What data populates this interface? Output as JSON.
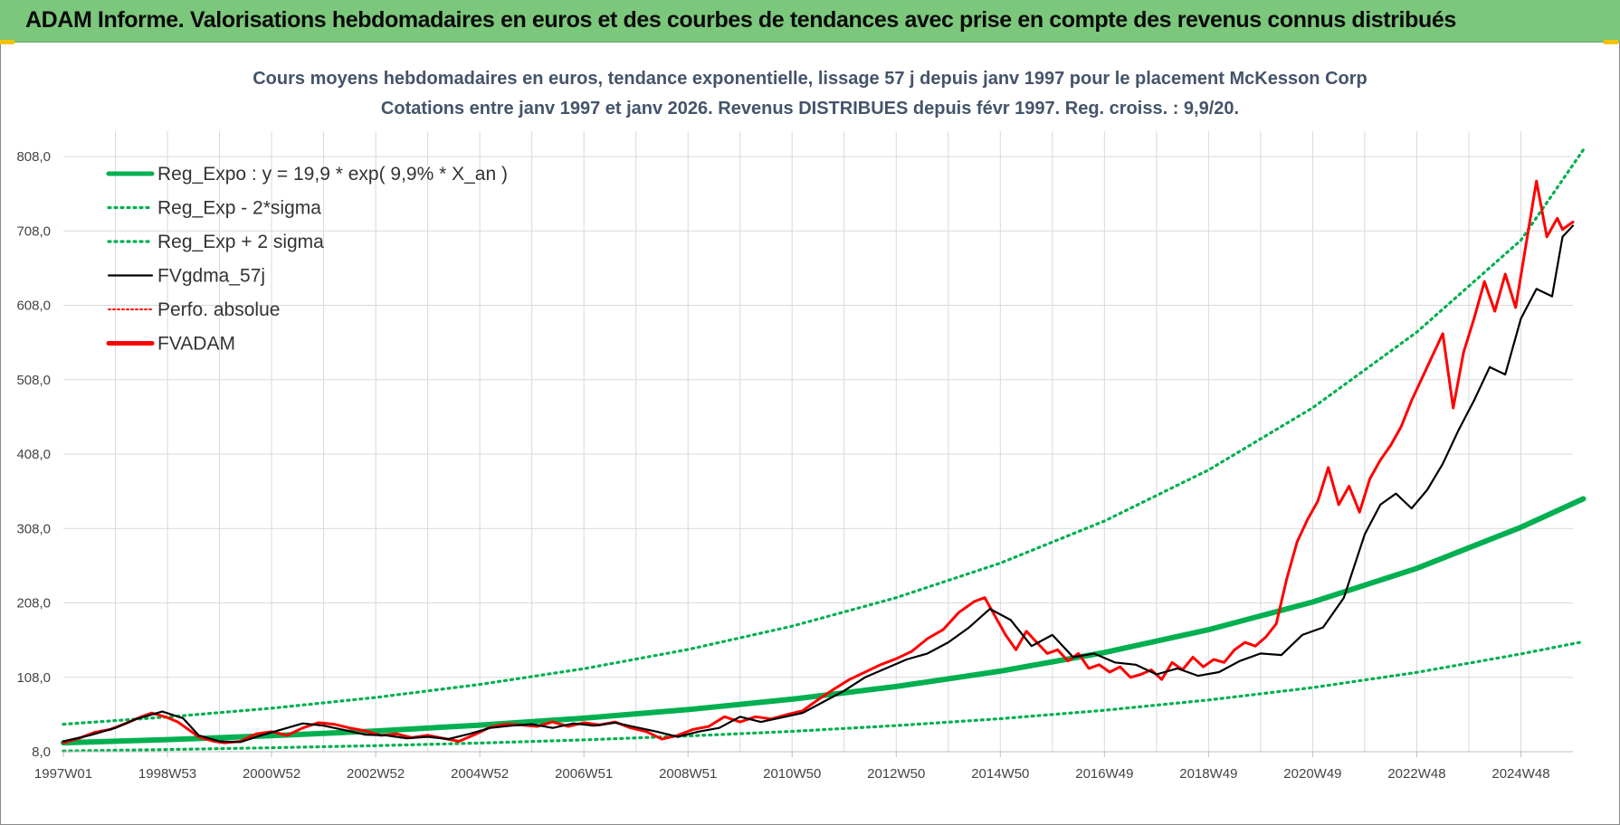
{
  "header": {
    "title": "ADAM Informe. Valorisations hebdomadaires en euros et des courbes de tendances avec prise en compte des revenus connus distribués",
    "background": "#7bc77c"
  },
  "colors": {
    "reg_expo": "#00b050",
    "sigma": "#00b050",
    "smooth": "#000000",
    "adam": "#ff0000",
    "perfo": "#ff0000",
    "grid": "#d9d9d9",
    "title": "#44546a"
  },
  "chart_data": {
    "type": "line",
    "title": "Cours moyens hebdomadaires en euros, tendance exponentielle, lissage 57 j depuis janv 1997 pour le placement McKesson Corp",
    "subtitle": "Cotations entre janv 1997 et janv 2026. Revenus DISTRIBUES depuis févr 1997. Reg. croiss. : 9,9/20.",
    "xlabel": "",
    "ylabel": "",
    "xlim": [
      1997.0,
      2026.0
    ],
    "ylim": [
      8.0,
      808.0
    ],
    "y_ticks": [
      "8,0",
      "108,0",
      "208,0",
      "308,0",
      "408,0",
      "508,0",
      "608,0",
      "708,0",
      "808,0"
    ],
    "x_ticks": [
      {
        "label": "1997W01",
        "x": 1997.0
      },
      {
        "label": "1998W53",
        "x": 1999.0
      },
      {
        "label": "2000W52",
        "x": 2001.0
      },
      {
        "label": "2002W52",
        "x": 2003.0
      },
      {
        "label": "2004W52",
        "x": 2005.0
      },
      {
        "label": "2006W51",
        "x": 2007.0
      },
      {
        "label": "2008W51",
        "x": 2009.0
      },
      {
        "label": "2010W50",
        "x": 2011.0
      },
      {
        "label": "2012W50",
        "x": 2013.0
      },
      {
        "label": "2014W50",
        "x": 2015.0
      },
      {
        "label": "2016W49",
        "x": 2017.0
      },
      {
        "label": "2018W49",
        "x": 2019.0
      },
      {
        "label": "2020W49",
        "x": 2021.0
      },
      {
        "label": "2022W48",
        "x": 2023.0
      },
      {
        "label": "2024W48",
        "x": 2025.0
      }
    ],
    "grid": true,
    "legend_position": "top-left",
    "series": [
      {
        "name": "Reg_Expo : y = 19,9 * exp( 9,9% *  X_an )",
        "style": "solid-thick",
        "color": "#00b050",
        "x": [
          1997,
          1999,
          2001,
          2003,
          2005,
          2007,
          2009,
          2011,
          2013,
          2015,
          2017,
          2019,
          2021,
          2023,
          2025,
          2026.2
        ],
        "values": [
          20,
          24.3,
          29.5,
          35.9,
          43.7,
          53.1,
          64.6,
          78.6,
          95.6,
          116.3,
          141.4,
          172.0,
          209.2,
          254.5,
          309.6,
          348.0
        ]
      },
      {
        "name": "Reg_Exp - 2*sigma",
        "style": "dotted",
        "color": "#00b050",
        "x": [
          1997,
          1999,
          2001,
          2003,
          2005,
          2007,
          2009,
          2011,
          2013,
          2015,
          2017,
          2019,
          2021,
          2023,
          2025,
          2026.2
        ],
        "values": [
          9,
          10.9,
          13.3,
          16.2,
          19.7,
          23.9,
          29.1,
          35.4,
          43.1,
          52.4,
          63.7,
          77.5,
          94.2,
          114.6,
          139.4,
          156.0
        ]
      },
      {
        "name": "Reg_Exp + 2 sigma",
        "style": "dotted",
        "color": "#00b050",
        "x": [
          1997,
          1999,
          2001,
          2003,
          2005,
          2007,
          2009,
          2011,
          2013,
          2015,
          2017,
          2019,
          2021,
          2023,
          2025,
          2026.2
        ],
        "values": [
          45,
          54.7,
          66.5,
          80.9,
          98.4,
          119.6,
          145.4,
          176.8,
          215.0,
          261.5,
          318.0,
          386.7,
          470.3,
          571.9,
          695.5,
          817.0
        ]
      },
      {
        "name": "FVgdma_57j",
        "style": "solid-thin",
        "color": "#000000",
        "x": [
          1997.0,
          1997.5,
          1998.0,
          1998.4,
          1998.9,
          1999.3,
          1999.6,
          2000.0,
          2000.4,
          2000.8,
          2001.2,
          2001.6,
          2002.0,
          2002.4,
          2002.8,
          2003.2,
          2003.6,
          2004.0,
          2004.4,
          2004.8,
          2005.2,
          2005.6,
          2006.0,
          2006.4,
          2006.8,
          2007.2,
          2007.6,
          2008.0,
          2008.4,
          2008.8,
          2009.2,
          2009.6,
          2010.0,
          2010.4,
          2010.8,
          2011.2,
          2011.6,
          2012.0,
          2012.4,
          2012.8,
          2013.2,
          2013.6,
          2014.0,
          2014.4,
          2014.8,
          2015.2,
          2015.6,
          2016.0,
          2016.4,
          2016.8,
          2017.2,
          2017.6,
          2018.0,
          2018.4,
          2018.8,
          2019.2,
          2019.6,
          2020.0,
          2020.4,
          2020.8,
          2021.2,
          2021.6,
          2022.0,
          2022.3,
          2022.6,
          2022.9,
          2023.2,
          2023.5,
          2023.8,
          2024.1,
          2024.4,
          2024.7,
          2025.0,
          2025.3,
          2025.6,
          2025.8,
          2026.0
        ],
        "values": [
          22,
          30,
          40,
          52,
          62,
          53,
          30,
          22,
          21,
          30,
          38,
          46,
          43,
          37,
          31,
          30,
          26,
          28,
          25,
          32,
          40,
          43,
          45,
          40,
          46,
          43,
          47,
          41,
          35,
          28,
          35,
          40,
          55,
          48,
          54,
          60,
          75,
          90,
          108,
          120,
          132,
          140,
          155,
          175,
          200,
          185,
          150,
          165,
          135,
          140,
          128,
          125,
          112,
          120,
          110,
          115,
          130,
          140,
          138,
          165,
          175,
          215,
          300,
          340,
          355,
          335,
          360,
          395,
          440,
          480,
          525,
          515,
          590,
          630,
          620,
          700,
          715
        ]
      },
      {
        "name": "Perfo. absolue",
        "style": "dotted-thin",
        "color": "#ff0000",
        "x": [],
        "values": []
      },
      {
        "name": "FVADAM",
        "style": "solid-thick",
        "color": "#ff0000",
        "x": [
          1997.0,
          1997.3,
          1997.6,
          1997.9,
          1998.2,
          1998.5,
          1998.7,
          1999.0,
          1999.2,
          1999.4,
          1999.6,
          1999.9,
          2000.1,
          2000.4,
          2000.7,
          2001.0,
          2001.3,
          2001.6,
          2001.9,
          2002.2,
          2002.5,
          2002.8,
          2003.1,
          2003.4,
          2003.7,
          2004.0,
          2004.3,
          2004.6,
          2004.9,
          2005.2,
          2005.5,
          2005.8,
          2006.1,
          2006.4,
          2006.7,
          2007.0,
          2007.3,
          2007.6,
          2007.9,
          2008.2,
          2008.5,
          2008.8,
          2009.1,
          2009.4,
          2009.7,
          2010.0,
          2010.3,
          2010.6,
          2010.9,
          2011.2,
          2011.5,
          2011.8,
          2012.1,
          2012.4,
          2012.7,
          2013.0,
          2013.3,
          2013.6,
          2013.9,
          2014.2,
          2014.5,
          2014.7,
          2014.9,
          2015.1,
          2015.3,
          2015.5,
          2015.7,
          2015.9,
          2016.1,
          2016.3,
          2016.5,
          2016.7,
          2016.9,
          2017.1,
          2017.3,
          2017.5,
          2017.7,
          2017.9,
          2018.1,
          2018.3,
          2018.5,
          2018.7,
          2018.9,
          2019.1,
          2019.3,
          2019.5,
          2019.7,
          2019.9,
          2020.1,
          2020.3,
          2020.5,
          2020.7,
          2020.9,
          2021.1,
          2021.3,
          2021.5,
          2021.7,
          2021.9,
          2022.1,
          2022.3,
          2022.5,
          2022.7,
          2022.9,
          2023.1,
          2023.3,
          2023.5,
          2023.7,
          2023.9,
          2024.1,
          2024.3,
          2024.5,
          2024.7,
          2024.9,
          2025.1,
          2025.3,
          2025.5,
          2025.7,
          2025.8,
          2025.9,
          2026.0
        ],
        "values": [
          20,
          26,
          34,
          38,
          46,
          55,
          60,
          54,
          48,
          38,
          28,
          22,
          20,
          22,
          32,
          35,
          30,
          40,
          47,
          45,
          40,
          36,
          30,
          32,
          27,
          30,
          26,
          22,
          31,
          41,
          45,
          44,
          42,
          48,
          42,
          47,
          44,
          48,
          40,
          35,
          25,
          30,
          38,
          42,
          55,
          48,
          55,
          52,
          58,
          63,
          78,
          92,
          105,
          115,
          125,
          133,
          143,
          160,
          172,
          195,
          210,
          215,
          190,
          165,
          145,
          170,
          155,
          140,
          145,
          130,
          140,
          120,
          125,
          115,
          122,
          108,
          112,
          118,
          105,
          128,
          118,
          135,
          122,
          132,
          128,
          145,
          155,
          150,
          162,
          180,
          240,
          290,
          320,
          345,
          390,
          340,
          365,
          330,
          375,
          400,
          420,
          445,
          480,
          510,
          540,
          570,
          470,
          545,
          590,
          640,
          600,
          650,
          605,
          690,
          775,
          700,
          725,
          710,
          715,
          720
        ]
      }
    ]
  }
}
